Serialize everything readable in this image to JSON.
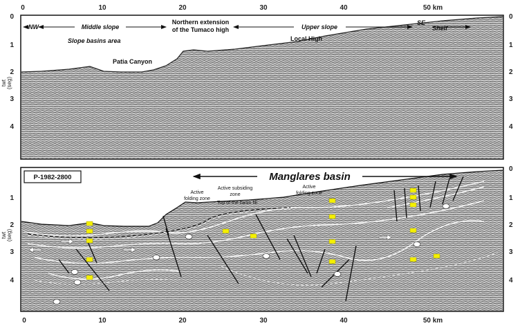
{
  "top_panel": {
    "x_ticks": [
      "0",
      "10",
      "20",
      "30",
      "40",
      "50 km"
    ],
    "y_ticks": [
      "0",
      "1",
      "2",
      "3",
      "4"
    ],
    "y_ticks_right": [
      "0",
      "1",
      "2",
      "3",
      "4"
    ],
    "y_label_1": "twt",
    "y_label_2": "(seg)",
    "labels": {
      "nw": "NW",
      "middle_slope": "Middle slope",
      "slope_basins": "Slope basins area",
      "northern_ext_1": "Northern extension",
      "northern_ext_2": "of the Tumaco high",
      "upper_slope": "Upper slope",
      "se": "SE",
      "shelf": "Shelf",
      "local_high": "Local High",
      "patia": "Patia Canyon"
    }
  },
  "bottom_panel": {
    "x_ticks": [
      "0",
      "10",
      "20",
      "30",
      "40",
      "50 km"
    ],
    "y_ticks": [
      "1",
      "2",
      "3",
      "4"
    ],
    "y_ticks_right": [
      "0",
      "1",
      "2",
      "3",
      "4"
    ],
    "y_label_1": "twt",
    "y_label_2": "(seg)",
    "line_id": "P-1982-2800",
    "basin_title": "Manglares basin",
    "annotations": {
      "active_folding_left_1": "Active",
      "active_folding_left_2": "folding zone",
      "active_subsiding_1": "Active subsiding",
      "active_subsiding_2": "zone",
      "top_basin_fill": "Top of the basin fill",
      "active_folding_right_1": "Active",
      "active_folding_right_2": "folding zone"
    }
  },
  "colors": {
    "seismic_dark": "#6a6a6a",
    "seismic_light": "#d9d9d9",
    "frame": "#111111",
    "marker_yellow": "#f5f000"
  }
}
